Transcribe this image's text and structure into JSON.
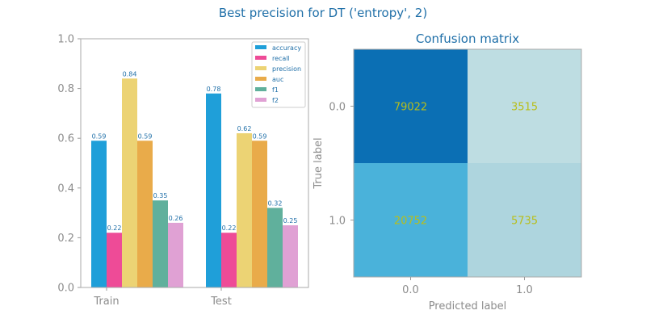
{
  "figure": {
    "suptitle": "Best precision for DT ('entropy', 2)"
  },
  "chart_data": [
    {
      "type": "bar",
      "categories": [
        "Train",
        "Test"
      ],
      "series": [
        {
          "name": "accuracy",
          "values": [
            0.59,
            0.78
          ],
          "labels": [
            "0.59",
            "0.78"
          ],
          "color": "#1f9fd9"
        },
        {
          "name": "recall",
          "values": [
            0.22,
            0.22
          ],
          "labels": [
            "0.22",
            "0.22"
          ],
          "color": "#ee4b97"
        },
        {
          "name": "precision",
          "values": [
            0.84,
            0.62
          ],
          "labels": [
            "0.84",
            "0.62"
          ],
          "color": "#ecd374"
        },
        {
          "name": "auc",
          "values": [
            0.59,
            0.59
          ],
          "labels": [
            "0.59",
            "0.59"
          ],
          "color": "#e9ab4a"
        },
        {
          "name": "f1",
          "values": [
            0.35,
            0.32
          ],
          "labels": [
            "0.35",
            "0.32"
          ],
          "color": "#60b09c"
        },
        {
          "name": "f2",
          "values": [
            0.26,
            0.25
          ],
          "labels": [
            "0.26",
            "0.25"
          ],
          "color": "#e0a1d4"
        }
      ],
      "ylim": [
        0,
        1.0
      ],
      "yticks": [
        "0.0",
        "0.2",
        "0.4",
        "0.6",
        "0.8",
        "1.0"
      ],
      "legend_position": "top-right",
      "grid": false
    },
    {
      "type": "heatmap",
      "title": "Confusion matrix",
      "xlabel": "Predicted label",
      "ylabel": "True label",
      "x_categories": [
        "0.0",
        "1.0"
      ],
      "y_categories": [
        "0.0",
        "1.0"
      ],
      "values": [
        [
          79022,
          3515
        ],
        [
          20752,
          5735
        ]
      ],
      "cell_labels": [
        [
          "79022",
          "3515"
        ],
        [
          "20752",
          "5735"
        ]
      ],
      "cell_colors": [
        [
          "#0b6fb4",
          "#bedde2"
        ],
        [
          "#4ab2da",
          "#aed5de"
        ]
      ],
      "label_color": "#b8be1b"
    }
  ],
  "colors": {
    "title": "#1f6fa8",
    "axis": "#999999",
    "tick_text": "#8c8c8c",
    "value_label": "#1f6fa8"
  }
}
